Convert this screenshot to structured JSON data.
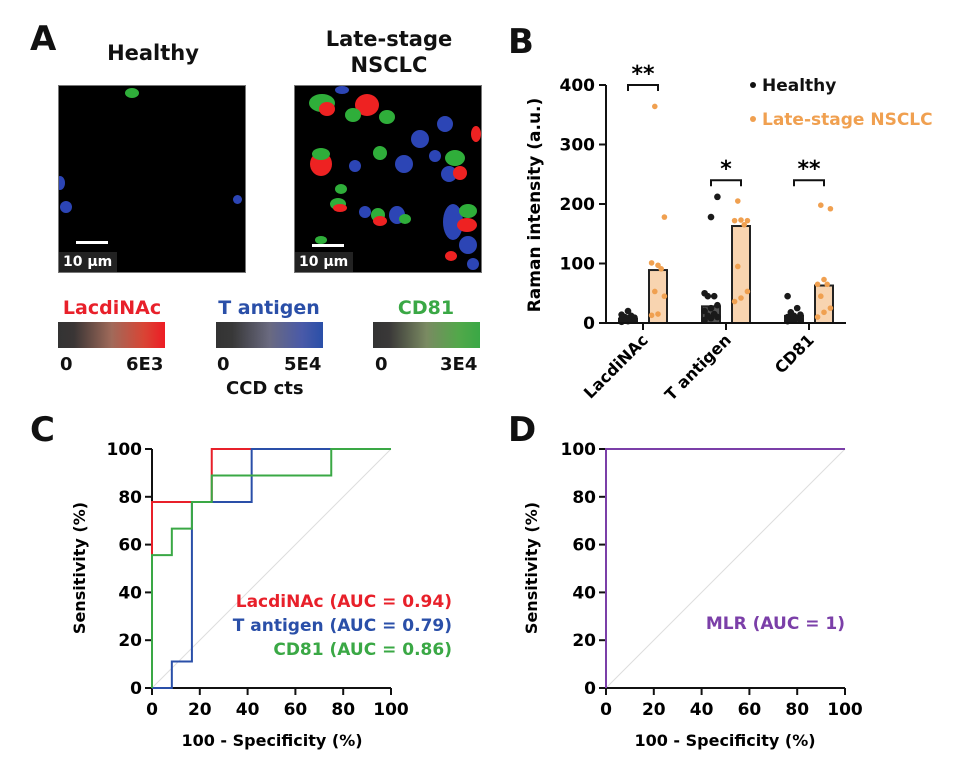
{
  "figure": {
    "panel_labels": [
      "A",
      "B",
      "C",
      "D"
    ]
  },
  "panel_a": {
    "titles": {
      "healthy": "Healthy",
      "nsclc_line1": "Late-stage",
      "nsclc_line2": "NSCLC"
    },
    "scale_bar_label": "10 µm",
    "colorbars": [
      {
        "name": "LacdiNAc",
        "color": "#e8202a",
        "min": "0",
        "max": "6E3"
      },
      {
        "name": "T antigen",
        "color": "#2a4fa8",
        "min": "0",
        "max": "5E4"
      },
      {
        "name": "CD81",
        "color": "#3aa845",
        "min": "0",
        "max": "3E4"
      }
    ],
    "colorbar_unit": "CCD cts"
  },
  "chart_data": [
    {
      "panel": "B",
      "type": "bar",
      "title": "",
      "xlabel": "",
      "ylabel": "Raman intensity (a.u.)",
      "ylim": [
        0,
        400
      ],
      "yticks": [
        "0",
        "100",
        "200",
        "300",
        "400"
      ],
      "categories": [
        "LacdiNAc",
        "T antigen",
        "CD81"
      ],
      "legend": {
        "placement": "top-right",
        "entries": [
          "Healthy",
          "Late-stage NSCLC"
        ]
      },
      "series": [
        {
          "name": "Healthy",
          "color": "#1a1a1a",
          "bar_fill": "#555555",
          "values": [
            7,
            28,
            12
          ],
          "points": [
            [
              2,
              3,
              4,
              5,
              6,
              7,
              8,
              9,
              10,
              12,
              14,
              20
            ],
            [
              5,
              8,
              10,
              12,
              15,
              20,
              25,
              30,
              45,
              45,
              50,
              178,
              212
            ],
            [
              3,
              4,
              5,
              6,
              8,
              10,
              12,
              14,
              18,
              25,
              45
            ]
          ]
        },
        {
          "name": "Late-stage NSCLC",
          "color": "#f0a050",
          "bar_fill": "#f8d4b0",
          "values": [
            89,
            163,
            63
          ],
          "points": [
            [
              13,
              15,
              45,
              53,
              91,
              101,
              97,
              178,
              364
            ],
            [
              36,
              42,
              53,
              95,
              165,
              172,
              173,
              172,
              205
            ],
            [
              10,
              18,
              25,
              45,
              65,
              65,
              73,
              192,
              198
            ]
          ]
        }
      ],
      "significance": [
        "**",
        "*",
        "**"
      ]
    },
    {
      "panel": "C",
      "type": "line",
      "title": "",
      "xlabel": "100 - Specificity (%)",
      "ylabel": "Sensitivity (%)",
      "xlim": [
        0,
        100
      ],
      "ylim": [
        0,
        100
      ],
      "xticks": [
        "0",
        "20",
        "40",
        "60",
        "80",
        "100"
      ],
      "yticks": [
        "0",
        "20",
        "40",
        "60",
        "80",
        "100"
      ],
      "reference_diagonal": true,
      "legend": {
        "placement": "bottom-right"
      },
      "series": [
        {
          "name": "LacdiNAc (AUC = 0.94)",
          "color": "#e8202a",
          "x": [
            0,
            0,
            0,
            16.7,
            25,
            25,
            100
          ],
          "y": [
            0,
            55.6,
            77.8,
            77.8,
            77.8,
            100,
            100
          ]
        },
        {
          "name": "T antigen (AUC = 0.79)",
          "color": "#2a4fa8",
          "x": [
            0,
            8.3,
            8.3,
            16.7,
            16.7,
            41.7,
            41.7,
            75
          ],
          "y": [
            0,
            0,
            11.1,
            11.1,
            77.8,
            77.8,
            100,
            100
          ]
        },
        {
          "name": "CD81 (AUC = 0.86)",
          "color": "#3aa845",
          "x": [
            0,
            0,
            8.3,
            8.3,
            16.7,
            16.7,
            25,
            25,
            75,
            75,
            100
          ],
          "y": [
            0,
            55.6,
            55.6,
            66.7,
            66.7,
            77.8,
            77.8,
            88.9,
            88.9,
            100,
            100
          ]
        }
      ]
    },
    {
      "panel": "D",
      "type": "line",
      "title": "",
      "xlabel": "100 - Specificity (%)",
      "ylabel": "Sensitivity (%)",
      "xlim": [
        0,
        100
      ],
      "ylim": [
        0,
        100
      ],
      "xticks": [
        "0",
        "20",
        "40",
        "60",
        "80",
        "100"
      ],
      "yticks": [
        "0",
        "20",
        "40",
        "60",
        "80",
        "100"
      ],
      "reference_diagonal": true,
      "legend": {
        "placement": "bottom-right"
      },
      "series": [
        {
          "name": "MLR (AUC = 1)",
          "color": "#7b3fa8",
          "x": [
            0,
            0,
            100
          ],
          "y": [
            0,
            100,
            100
          ]
        }
      ]
    }
  ]
}
